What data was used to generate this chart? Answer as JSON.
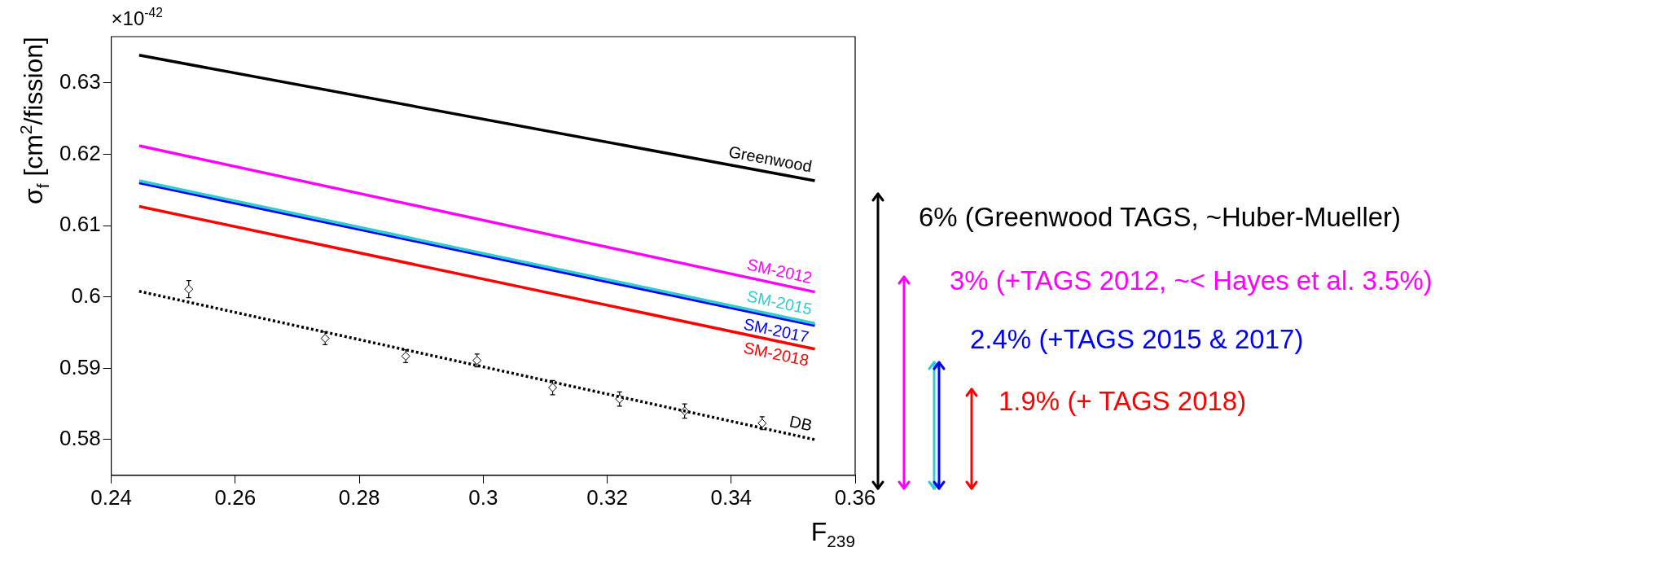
{
  "chart_data": {
    "type": "line",
    "xlabel": "F$_{239}$",
    "ylabel": "σ$_{f}$ [cm$^{2}$/fission]",
    "xlim": [
      0.24,
      0.36
    ],
    "xticks": [
      0.24,
      0.26,
      0.28,
      0.3,
      0.32,
      0.34,
      0.36
    ],
    "ylim": [
      0.575,
      0.6365
    ],
    "yticks": [
      0.58,
      0.59,
      0.6,
      0.61,
      0.62,
      0.63
    ],
    "grid": false,
    "legend": false,
    "series": [
      {
        "name": "Greenwood",
        "color": "#000000",
        "x": [
          0.2445,
          0.3535
        ],
        "values": [
          0.6339,
          0.6163
        ]
      },
      {
        "name": "SM-2012",
        "color": "#ff00ff",
        "x": [
          0.2445,
          0.3535
        ],
        "values": [
          0.6212,
          0.6007
        ]
      },
      {
        "name": "SM-2015",
        "color": "#33cccc",
        "x": [
          0.2445,
          0.3535
        ],
        "values": [
          0.6163,
          0.5963
        ]
      },
      {
        "name": "SM-2017",
        "color": "#0000ff",
        "x": [
          0.2445,
          0.3535
        ],
        "values": [
          0.616,
          0.596
        ]
      },
      {
        "name": "SM-2018",
        "color": "#ff0000",
        "x": [
          0.2445,
          0.3535
        ],
        "values": [
          0.6127,
          0.5927
        ]
      },
      {
        "name": "DB",
        "color": "#000000",
        "line_style": "dotted",
        "x": [
          0.2445,
          0.3535
        ],
        "values": [
          0.6008,
          0.58
        ]
      },
      {
        "color": "#000000",
        "type": "scatter",
        "marker": "diamond",
        "x": [
          0.2525,
          0.2745,
          0.2875,
          0.299,
          0.3112,
          0.322,
          0.3325,
          0.345
        ],
        "values": [
          0.6011,
          0.5942,
          0.5917,
          0.5911,
          0.5873,
          0.5857,
          0.584,
          0.5823
        ],
        "errors": [
          0.0012,
          0.0009,
          0.0009,
          0.0009,
          0.001,
          0.001,
          0.001,
          0.0009
        ]
      }
    ],
    "annotations": [
      "×10$^{-42}$",
      "6% (Greenwood TAGS, ~Huber-Mueller)",
      "3% (+TAGS 2012, ~< Hayes et al. 3.5%)",
      "2.4% (+TAGS 2015 & 2017)",
      "1.9% (+ TAGS 2018)"
    ]
  }
}
